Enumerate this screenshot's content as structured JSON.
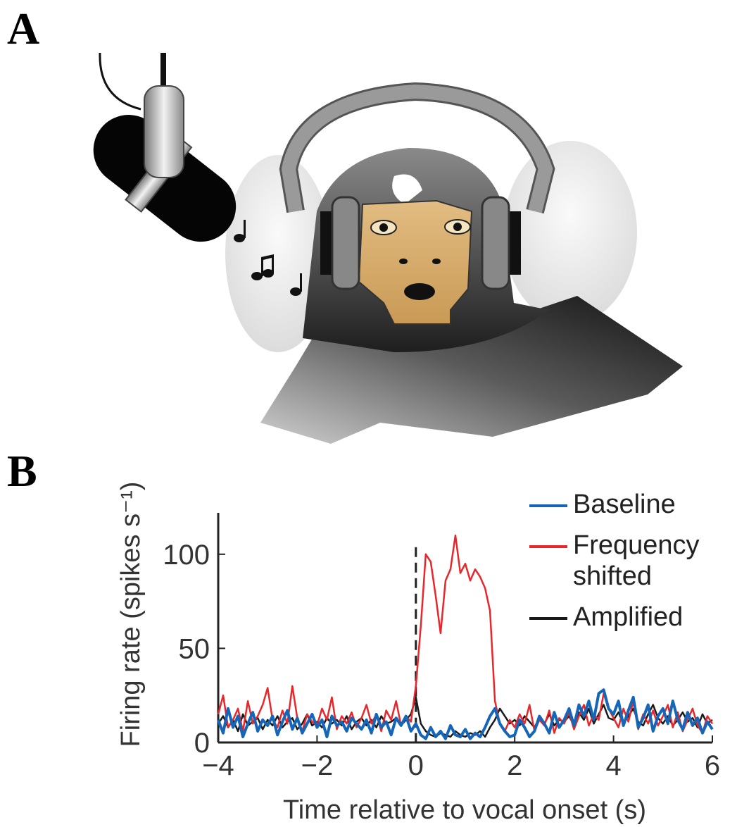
{
  "panel_labels": [
    "A",
    "B"
  ],
  "chart_data": {
    "type": "line",
    "x_label": "Time relative to vocal onset (s)",
    "y_label": "Firing rate (spikes s⁻¹)",
    "x": [
      -4.0,
      -3.9,
      -3.8,
      -3.7,
      -3.6,
      -3.5,
      -3.4,
      -3.3,
      -3.2,
      -3.1,
      -3.0,
      -2.9,
      -2.8,
      -2.7,
      -2.6,
      -2.5,
      -2.4,
      -2.3,
      -2.2,
      -2.1,
      -2.0,
      -1.9,
      -1.8,
      -1.7,
      -1.6,
      -1.5,
      -1.4,
      -1.3,
      -1.2,
      -1.1,
      -1.0,
      -0.9,
      -0.8,
      -0.7,
      -0.6,
      -0.5,
      -0.4,
      -0.3,
      -0.2,
      -0.1,
      0.0,
      0.1,
      0.2,
      0.3,
      0.4,
      0.5,
      0.6,
      0.7,
      0.8,
      0.9,
      1.0,
      1.1,
      1.2,
      1.3,
      1.4,
      1.5,
      1.6,
      1.7,
      1.8,
      1.9,
      2.0,
      2.1,
      2.2,
      2.3,
      2.4,
      2.5,
      2.6,
      2.7,
      2.8,
      2.9,
      3.0,
      3.1,
      3.2,
      3.3,
      3.4,
      3.5,
      3.6,
      3.7,
      3.8,
      3.9,
      4.0,
      4.1,
      4.2,
      4.3,
      4.4,
      4.5,
      4.6,
      4.7,
      4.8,
      4.9,
      5.0,
      5.1,
      5.2,
      5.3,
      5.4,
      5.5,
      5.6,
      5.7,
      5.8,
      5.9,
      6.0
    ],
    "series": [
      {
        "name": "Baseline",
        "color": "#1565b8",
        "values": [
          12,
          5,
          18,
          8,
          14,
          3,
          10,
          16,
          6,
          12,
          9,
          14,
          4,
          11,
          17,
          7,
          13,
          5,
          10,
          15,
          8,
          12,
          3,
          14,
          9,
          11,
          6,
          13,
          10,
          7,
          12,
          5,
          15,
          8,
          11,
          4,
          13,
          9,
          14,
          6,
          10,
          4,
          2,
          8,
          3,
          6,
          2,
          9,
          4,
          3,
          7,
          2,
          5,
          3,
          8,
          14,
          18,
          10,
          6,
          3,
          4,
          12,
          8,
          3,
          6,
          14,
          10,
          5,
          16,
          8,
          12,
          18,
          9,
          20,
          14,
          22,
          12,
          26,
          28,
          18,
          15,
          22,
          9,
          17,
          24,
          8,
          13,
          20,
          6,
          14,
          18,
          10,
          22,
          12,
          7,
          16,
          9,
          13,
          5,
          11,
          7
        ]
      },
      {
        "name": "Frequency shifted",
        "color": "#e8272b",
        "values": [
          15,
          25,
          8,
          12,
          18,
          6,
          22,
          10,
          14,
          20,
          29,
          12,
          8,
          17,
          10,
          30,
          13,
          6,
          15,
          11,
          9,
          18,
          12,
          24,
          7,
          14,
          10,
          16,
          8,
          13,
          20,
          10,
          15,
          6,
          17,
          12,
          22,
          9,
          14,
          11,
          30,
          62,
          100,
          96,
          78,
          58,
          86,
          92,
          110,
          90,
          95,
          86,
          92,
          88,
          82,
          70,
          22,
          10,
          6,
          12,
          8,
          15,
          10,
          20,
          6,
          12,
          9,
          17,
          5,
          13,
          10,
          16,
          7,
          14,
          20,
          9,
          15,
          12,
          26,
          18,
          13,
          8,
          18,
          11,
          22,
          7,
          15,
          10,
          17,
          9,
          14,
          20,
          8,
          16,
          6,
          12,
          18,
          9,
          5,
          14,
          10
        ]
      },
      {
        "name": "Amplified",
        "color": "#1a1a1a",
        "values": [
          10,
          14,
          8,
          12,
          6,
          15,
          9,
          11,
          13,
          7,
          12,
          9,
          14,
          8,
          11,
          13,
          7,
          10,
          15,
          9,
          11,
          8,
          13,
          10,
          12,
          9,
          14,
          7,
          11,
          13,
          9,
          12,
          8,
          14,
          10,
          11,
          13,
          9,
          12,
          15,
          24,
          10,
          6,
          4,
          3,
          5,
          4,
          3,
          6,
          4,
          3,
          5,
          4,
          6,
          3,
          8,
          12,
          18,
          14,
          10,
          12,
          9,
          14,
          11,
          8,
          13,
          10,
          15,
          9,
          12,
          11,
          14,
          9,
          16,
          12,
          18,
          10,
          15,
          20,
          13,
          12,
          16,
          10,
          14,
          18,
          11,
          9,
          15,
          20,
          13,
          10,
          14,
          9,
          12,
          16,
          11,
          13,
          8,
          15,
          10,
          12
        ]
      }
    ],
    "xlim": [
      -4,
      6
    ],
    "ylim": [
      0,
      122
    ],
    "xticks": [
      {
        "value": -4,
        "label": "−4"
      },
      {
        "value": -2,
        "label": "−2"
      },
      0,
      2,
      4,
      6
    ],
    "yticks": [
      0,
      50,
      100
    ],
    "vlines": [
      0
    ],
    "grid": false,
    "legend": "upper right"
  }
}
